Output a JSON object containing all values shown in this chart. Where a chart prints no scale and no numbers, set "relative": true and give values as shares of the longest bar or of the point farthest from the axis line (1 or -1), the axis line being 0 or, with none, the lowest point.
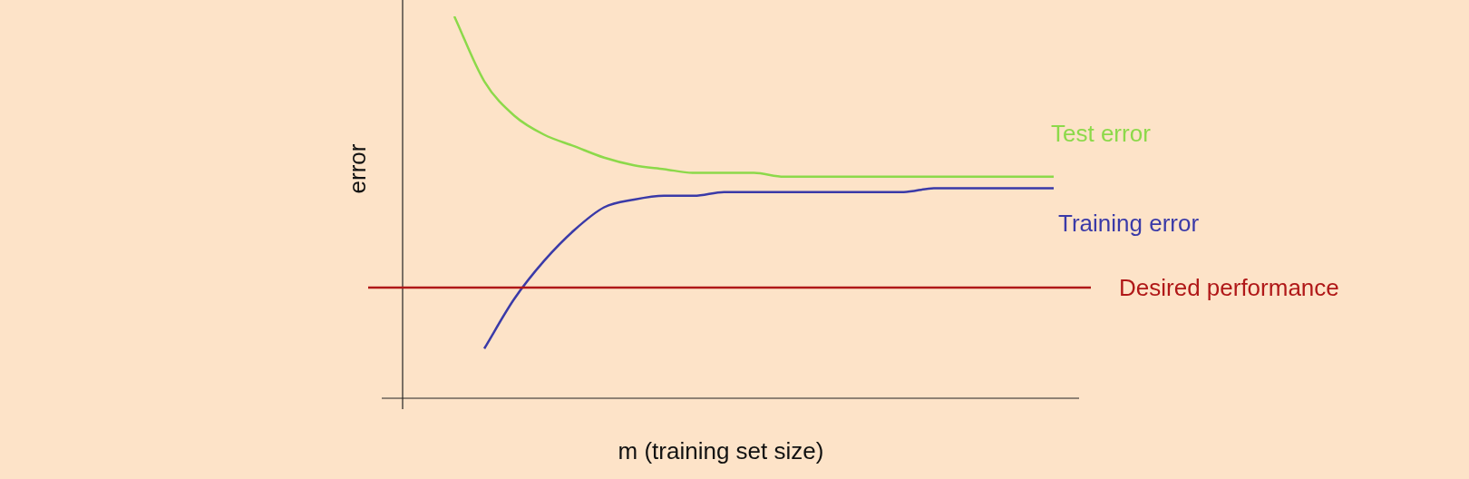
{
  "chart_data": {
    "type": "line",
    "xlabel": "m (training set size)",
    "ylabel": "error",
    "relative": true,
    "tick_labels": false,
    "marker": "none",
    "categories": [
      null,
      null,
      null,
      null,
      null,
      null,
      null,
      null,
      null,
      null,
      null,
      null,
      null,
      null,
      null,
      null,
      null,
      null,
      null,
      null,
      null
    ],
    "series": [
      {
        "name": "Test error",
        "color": "#8cd94a",
        "values": [
          1.0,
          0.83,
          0.74,
          0.69,
          0.66,
          0.63,
          0.61,
          0.6,
          0.59,
          0.59,
          0.59,
          0.58,
          0.58,
          0.58,
          0.58,
          0.58,
          0.58,
          0.58,
          0.58,
          0.58,
          0.58
        ]
      },
      {
        "name": "Training error",
        "color": "#3a3aa8",
        "values": [
          null,
          0.13,
          0.26,
          0.36,
          0.44,
          0.5,
          0.52,
          0.53,
          0.53,
          0.54,
          0.54,
          0.54,
          0.54,
          0.54,
          0.54,
          0.54,
          0.55,
          0.55,
          0.55,
          0.55,
          0.55
        ]
      }
    ],
    "ref_lines": [
      {
        "axis": "y",
        "value": 0.29,
        "label": "Desired performance",
        "color": "#b01818"
      }
    ]
  }
}
